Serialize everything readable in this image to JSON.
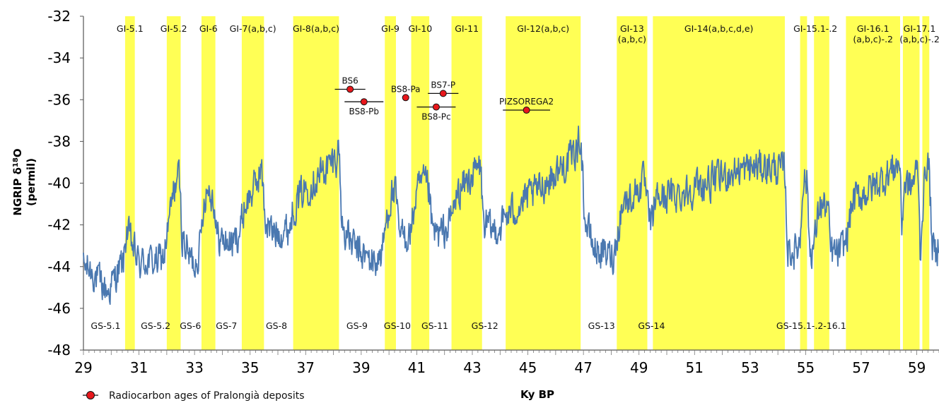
{
  "chart_data": {
    "type": "line",
    "xlabel": "Ky BP",
    "ylabel": [
      "NGRIP δ¹⁸O",
      "(permil)"
    ],
    "xlim": [
      29,
      59.8
    ],
    "ylim": [
      -48,
      -32
    ],
    "x_ticks": [
      "29",
      "31",
      "33",
      "35",
      "37",
      "39",
      "41",
      "43",
      "45",
      "47",
      "49",
      "51",
      "53",
      "55",
      "57",
      "59"
    ],
    "y_ticks": [
      "-32",
      "-34",
      "-36",
      "-38",
      "-40",
      "-42",
      "-44",
      "-46",
      "-48"
    ],
    "line_color": "#4a78b0",
    "band_color": "#ffff55",
    "interstadials": [
      {
        "label": "GI-5.1",
        "start": 30.5,
        "end": 30.85
      },
      {
        "label": "GI-5.2",
        "start": 32.0,
        "end": 32.5
      },
      {
        "label": "GI-6",
        "start": 33.25,
        "end": 33.75
      },
      {
        "label": "GI-7(a,b,c)",
        "start": 34.7,
        "end": 35.5
      },
      {
        "label": "GI-8(a,b,c)",
        "start": 36.55,
        "end": 38.2
      },
      {
        "label": "GI-9",
        "start": 39.85,
        "end": 40.25
      },
      {
        "label": "GI-10",
        "start": 40.8,
        "end": 41.45
      },
      {
        "label": "GI-11",
        "start": 42.25,
        "end": 43.35
      },
      {
        "label": "GI-12(a,b,c)",
        "start": 44.2,
        "end": 46.9
      },
      {
        "label": "GI-13\n(a,b,c)",
        "start": 48.2,
        "end": 49.3
      },
      {
        "label": "GI-14(a,b,c,d,e)",
        "start": 49.5,
        "end": 54.25
      },
      {
        "label": "GI-15.1-.2",
        "start": 54.8,
        "end": 55.05,
        "label_x": 55.35
      },
      {
        "label": "",
        "start": 55.3,
        "end": 55.85
      },
      {
        "label": "GI-16.1\n(a,b,c)-.2",
        "start": 56.45,
        "end": 58.4
      },
      {
        "label": "GI-17.1\n(a,b,c)-.2",
        "start": 58.5,
        "end": 59.1,
        "label_x": 59.1
      },
      {
        "label": "",
        "start": 59.2,
        "end": 59.45
      }
    ],
    "stadial_labels": [
      {
        "label": "GS-5.1",
        "x": 29.8
      },
      {
        "label": "GS-5.2",
        "x": 31.6
      },
      {
        "label": "GS-6",
        "x": 32.85
      },
      {
        "label": "GS-7",
        "x": 34.15
      },
      {
        "label": "GS-8",
        "x": 35.95
      },
      {
        "label": "GS-9",
        "x": 38.85
      },
      {
        "label": "GS-10",
        "x": 40.3
      },
      {
        "label": "GS-11",
        "x": 41.65
      },
      {
        "label": "GS-12",
        "x": 43.45
      },
      {
        "label": "GS-13",
        "x": 47.65
      },
      {
        "label": "GS-14",
        "x": 49.45
      },
      {
        "label": "GS-15.1-.2-16.1",
        "x": 55.2
      }
    ],
    "radiocarbon": {
      "legend": "Radiocarbon ages of Pralongià deposits",
      "marker_color": "#e8171c",
      "points": [
        {
          "label": "BS6",
          "x": 38.6,
          "y": -35.5,
          "err": 0.55,
          "label_pos": "above"
        },
        {
          "label": "BS8-Pb",
          "x": 39.1,
          "y": -36.1,
          "err": 0.7,
          "label_pos": "below"
        },
        {
          "label": "BS8-Pa",
          "x": 40.6,
          "y": -35.9,
          "err": 0,
          "label_pos": "above"
        },
        {
          "label": "BS7-P",
          "x": 41.95,
          "y": -35.7,
          "err": 0.55,
          "label_pos": "above"
        },
        {
          "label": "BS8-Pc",
          "x": 41.7,
          "y": -36.35,
          "err": 0.7,
          "label_pos": "below"
        },
        {
          "label": "PIZSOREGA2",
          "x": 44.95,
          "y": -36.5,
          "err": 0.85,
          "label_pos": "above"
        }
      ]
    },
    "profile": [
      [
        29.0,
        -44.0
      ],
      [
        29.3,
        -44.2
      ],
      [
        29.6,
        -44.8
      ],
      [
        29.9,
        -45.2
      ],
      [
        30.1,
        -44.6
      ],
      [
        30.3,
        -44.1
      ],
      [
        30.45,
        -43.8
      ],
      [
        30.55,
        -42.2
      ],
      [
        30.7,
        -42.8
      ],
      [
        30.85,
        -43.3
      ],
      [
        31.0,
        -43.9
      ],
      [
        31.3,
        -43.7
      ],
      [
        31.6,
        -43.8
      ],
      [
        31.9,
        -43.5
      ],
      [
        32.0,
        -42.6
      ],
      [
        32.2,
        -40.8
      ],
      [
        32.35,
        -39.8
      ],
      [
        32.45,
        -39.7
      ],
      [
        32.55,
        -42.5
      ],
      [
        32.8,
        -43.5
      ],
      [
        33.0,
        -43.9
      ],
      [
        33.2,
        -43.0
      ],
      [
        33.35,
        -40.6
      ],
      [
        33.5,
        -40.2
      ],
      [
        33.7,
        -40.8
      ],
      [
        33.8,
        -42.6
      ],
      [
        34.1,
        -42.8
      ],
      [
        34.4,
        -42.9
      ],
      [
        34.65,
        -42.2
      ],
      [
        34.8,
        -41.1
      ],
      [
        35.0,
        -40.6
      ],
      [
        35.2,
        -40.1
      ],
      [
        35.4,
        -39.2
      ],
      [
        35.55,
        -41.8
      ],
      [
        35.8,
        -42.4
      ],
      [
        36.1,
        -42.3
      ],
      [
        36.4,
        -42.2
      ],
      [
        36.55,
        -41.2
      ],
      [
        36.9,
        -40.4
      ],
      [
        37.2,
        -40.0
      ],
      [
        37.5,
        -39.6
      ],
      [
        37.8,
        -39.2
      ],
      [
        38.1,
        -38.8
      ],
      [
        38.2,
        -38.2
      ],
      [
        38.3,
        -42.0
      ],
      [
        38.6,
        -42.8
      ],
      [
        38.9,
        -43.3
      ],
      [
        39.2,
        -43.6
      ],
      [
        39.5,
        -43.8
      ],
      [
        39.75,
        -43.4
      ],
      [
        39.9,
        -41.8
      ],
      [
        40.1,
        -40.5
      ],
      [
        40.25,
        -40.6
      ],
      [
        40.35,
        -42.4
      ],
      [
        40.6,
        -42.6
      ],
      [
        40.8,
        -42.3
      ],
      [
        40.95,
        -40.8
      ],
      [
        41.1,
        -40.2
      ],
      [
        41.3,
        -40.0
      ],
      [
        41.45,
        -40.5
      ],
      [
        41.55,
        -42.3
      ],
      [
        41.8,
        -42.5
      ],
      [
        42.1,
        -42.2
      ],
      [
        42.25,
        -41.6
      ],
      [
        42.45,
        -40.6
      ],
      [
        42.7,
        -40.1
      ],
      [
        43.0,
        -39.6
      ],
      [
        43.3,
        -39.2
      ],
      [
        43.4,
        -41.9
      ],
      [
        43.7,
        -42.3
      ],
      [
        44.0,
        -42.1
      ],
      [
        44.2,
        -41.6
      ],
      [
        44.5,
        -41.3
      ],
      [
        44.9,
        -40.8
      ],
      [
        45.3,
        -40.4
      ],
      [
        45.7,
        -39.9
      ],
      [
        46.1,
        -39.4
      ],
      [
        46.5,
        -38.9
      ],
      [
        46.8,
        -38.3
      ],
      [
        46.9,
        -37.6
      ],
      [
        47.05,
        -41.8
      ],
      [
        47.4,
        -43.2
      ],
      [
        47.8,
        -43.4
      ],
      [
        48.1,
        -43.5
      ],
      [
        48.2,
        -42.6
      ],
      [
        48.4,
        -41.0
      ],
      [
        48.7,
        -40.7
      ],
      [
        49.0,
        -40.2
      ],
      [
        49.2,
        -39.9
      ],
      [
        49.35,
        -41.7
      ],
      [
        49.45,
        -42.0
      ],
      [
        49.6,
        -40.7
      ],
      [
        50.0,
        -40.6
      ],
      [
        50.5,
        -40.5
      ],
      [
        51.0,
        -40.2
      ],
      [
        51.5,
        -40.0
      ],
      [
        52.0,
        -39.7
      ],
      [
        52.5,
        -39.4
      ],
      [
        53.0,
        -39.3
      ],
      [
        53.5,
        -39.2
      ],
      [
        54.0,
        -39.3
      ],
      [
        54.25,
        -39.4
      ],
      [
        54.35,
        -43.2
      ],
      [
        54.6,
        -43.3
      ],
      [
        54.8,
        -42.8
      ],
      [
        54.9,
        -39.8
      ],
      [
        55.05,
        -39.9
      ],
      [
        55.15,
        -43.3
      ],
      [
        55.3,
        -43.0
      ],
      [
        55.5,
        -41.0
      ],
      [
        55.8,
        -41.2
      ],
      [
        55.9,
        -43.3
      ],
      [
        56.2,
        -43.4
      ],
      [
        56.45,
        -42.8
      ],
      [
        56.7,
        -40.8
      ],
      [
        57.0,
        -40.6
      ],
      [
        57.4,
        -40.2
      ],
      [
        57.8,
        -39.8
      ],
      [
        58.2,
        -39.2
      ],
      [
        58.4,
        -39.0
      ],
      [
        58.45,
        -42.4
      ],
      [
        58.55,
        -40.0
      ],
      [
        58.8,
        -40.2
      ],
      [
        59.05,
        -39.2
      ],
      [
        59.12,
        -43.4
      ],
      [
        59.22,
        -41.0
      ],
      [
        59.35,
        -38.9
      ],
      [
        59.45,
        -39.4
      ],
      [
        59.55,
        -43.0
      ],
      [
        59.7,
        -43.5
      ],
      [
        59.8,
        -42.6
      ]
    ]
  }
}
